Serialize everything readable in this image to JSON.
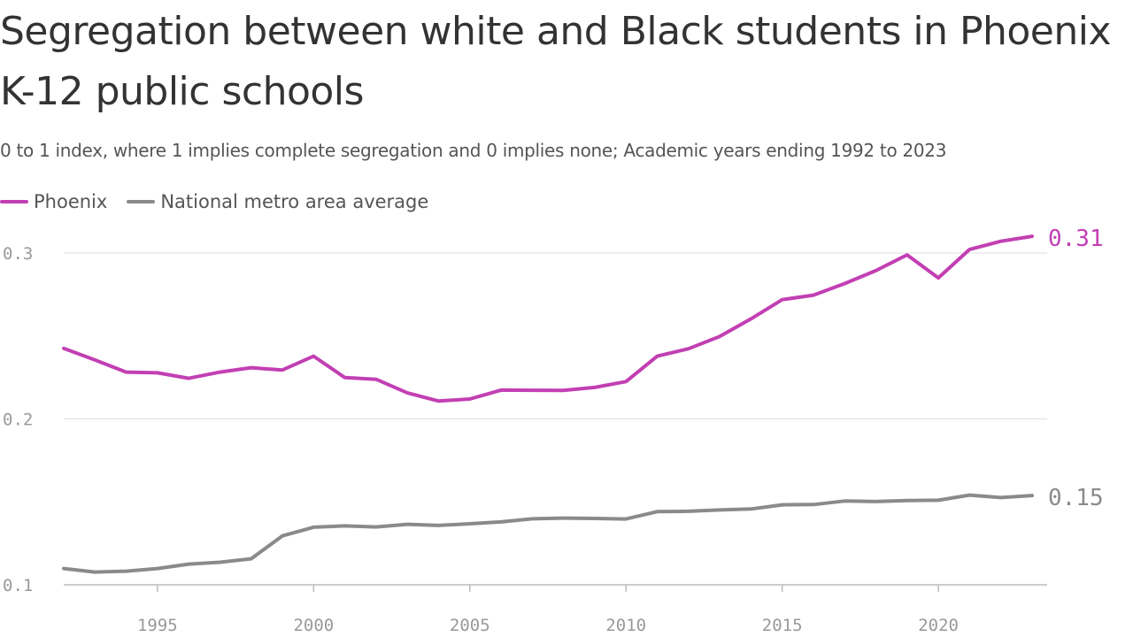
{
  "title": "Segregation between white and Black students in Phoenix K-12 public schools",
  "subtitle": "0 to 1 index, where 1 implies complete segregation and 0 implies none; Academic years ending 1992 to 2023",
  "chart_data": {
    "type": "line",
    "title": "Segregation between white and Black students in Phoenix K-12 public schools",
    "subtitle": "0 to 1 index, where 1 implies complete segregation and 0 implies none; Academic years ending 1992 to 2023",
    "xlabel": "",
    "ylabel": "",
    "xlim": [
      1992,
      2023
    ],
    "ylim": [
      0.1,
      0.31
    ],
    "y_ticks": [
      0.1,
      0.2,
      0.3
    ],
    "y_tick_labels": [
      "0.1",
      "0.2",
      "0.3"
    ],
    "x_ticks": [
      1995,
      2000,
      2005,
      2010,
      2015,
      2020
    ],
    "x_tick_labels": [
      "1995",
      "2000",
      "2005",
      "2010",
      "2015",
      "2020"
    ],
    "grid": true,
    "legend_position": "top-left",
    "x": [
      1992,
      1993,
      1994,
      1995,
      1996,
      1997,
      1998,
      1999,
      2000,
      2001,
      2002,
      2003,
      2004,
      2005,
      2006,
      2007,
      2008,
      2009,
      2010,
      2011,
      2012,
      2013,
      2014,
      2015,
      2016,
      2017,
      2018,
      2019,
      2020,
      2021,
      2022,
      2023
    ],
    "series": [
      {
        "name": "Phoenix",
        "color": "#c23fb3",
        "end_label": "0.31",
        "values": [
          0.2425,
          0.2355,
          0.2282,
          0.2278,
          0.2245,
          0.2282,
          0.2309,
          0.2295,
          0.2378,
          0.2249,
          0.2239,
          0.2157,
          0.2108,
          0.212,
          0.2174,
          0.2173,
          0.2172,
          0.219,
          0.2225,
          0.2378,
          0.2423,
          0.2497,
          0.2603,
          0.2719,
          0.2746,
          0.2816,
          0.2894,
          0.2989,
          0.285,
          0.3022,
          0.3071,
          0.3101
        ]
      },
      {
        "name": "National metro area average",
        "color": "#8a8a8a",
        "end_label": "0.15",
        "values": [
          0.1098,
          0.1077,
          0.1082,
          0.1098,
          0.1125,
          0.1136,
          0.1157,
          0.1295,
          0.1347,
          0.1355,
          0.1349,
          0.1365,
          0.1358,
          0.1368,
          0.1379,
          0.1398,
          0.1402,
          0.14,
          0.1397,
          0.1441,
          0.1443,
          0.1451,
          0.1457,
          0.1482,
          0.1484,
          0.1505,
          0.1502,
          0.1508,
          0.151,
          0.1541,
          0.1526,
          0.1538
        ]
      }
    ]
  }
}
